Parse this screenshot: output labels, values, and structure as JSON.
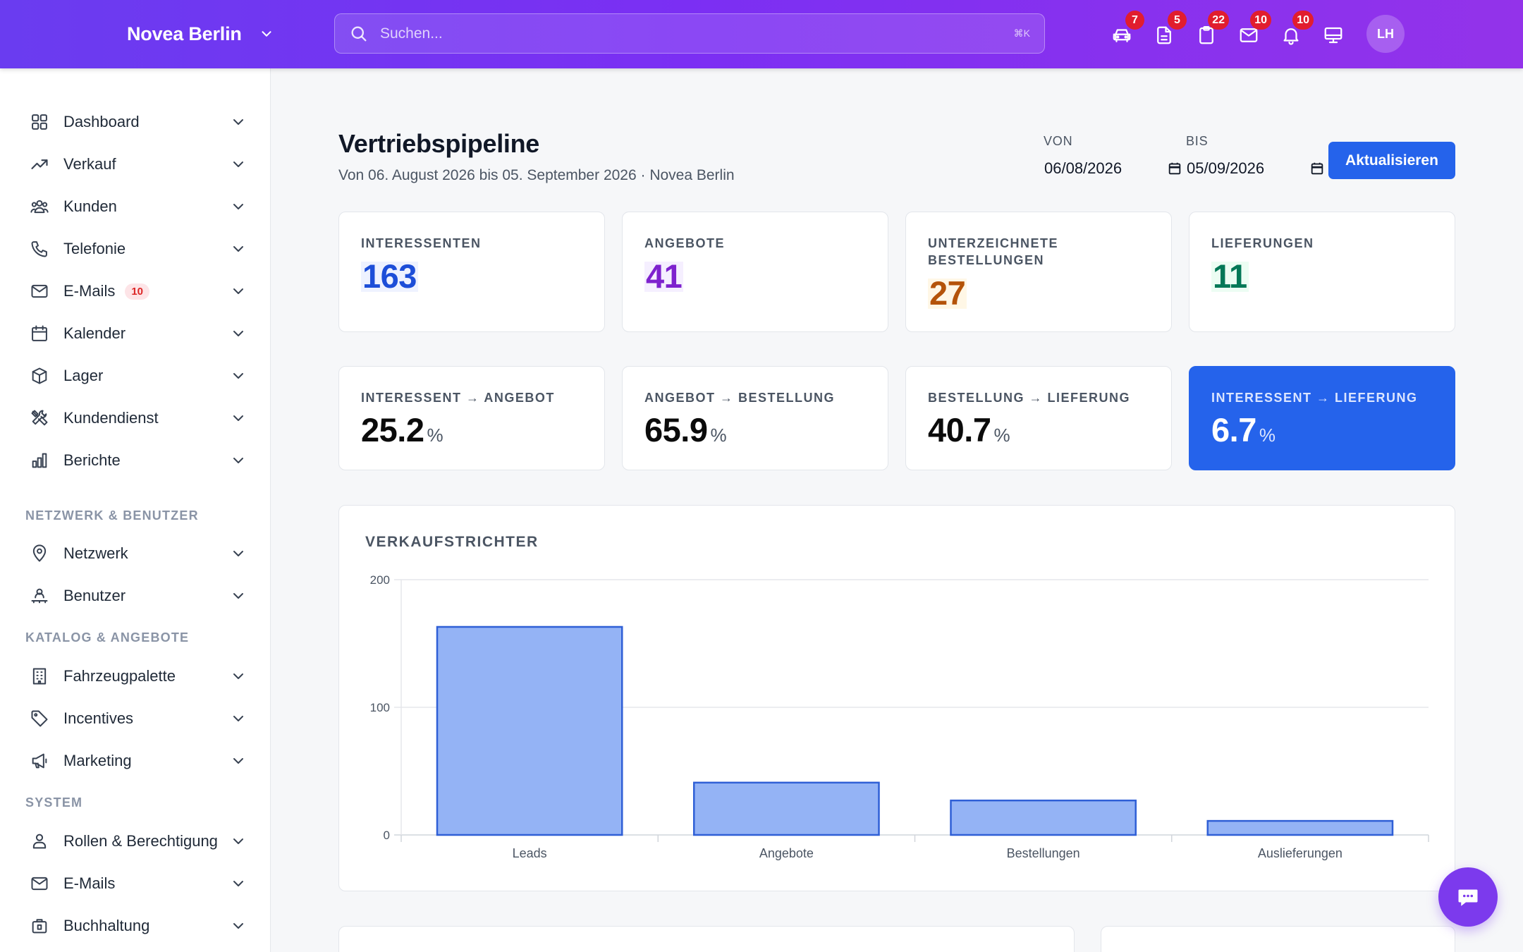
{
  "header": {
    "brand": "Novea Berlin",
    "search_placeholder": "Suchen...",
    "search_shortcut": "⌘K",
    "icons": [
      {
        "name": "car-icon",
        "badge": "7"
      },
      {
        "name": "document-icon",
        "badge": "5"
      },
      {
        "name": "clipboard-icon",
        "badge": "22"
      },
      {
        "name": "mail-icon",
        "badge": "10"
      },
      {
        "name": "bell-icon",
        "badge": "10"
      },
      {
        "name": "monitor-icon",
        "badge": ""
      }
    ],
    "avatar_initials": "LH"
  },
  "sidebar": {
    "main_items": [
      {
        "label": "Dashboard",
        "icon": "grid-icon"
      },
      {
        "label": "Verkauf",
        "icon": "trend-icon"
      },
      {
        "label": "Kunden",
        "icon": "users-icon"
      },
      {
        "label": "Telefonie",
        "icon": "phone-icon"
      },
      {
        "label": "E-Mails",
        "icon": "mail-icon",
        "badge": "10"
      },
      {
        "label": "Kalender",
        "icon": "calendar-icon"
      },
      {
        "label": "Lager",
        "icon": "box-icon"
      },
      {
        "label": "Kundendienst",
        "icon": "tools-icon"
      },
      {
        "label": "Berichte",
        "icon": "chart-icon"
      }
    ],
    "sections": [
      {
        "title": "NETZWERK & BENUTZER",
        "items": [
          {
            "label": "Netzwerk",
            "icon": "map-pin-icon"
          },
          {
            "label": "Benutzer",
            "icon": "user-network-icon"
          }
        ]
      },
      {
        "title": "KATALOG & ANGEBOTE",
        "items": [
          {
            "label": "Fahrzeugpalette",
            "icon": "building-icon"
          },
          {
            "label": "Incentives",
            "icon": "tag-icon"
          },
          {
            "label": "Marketing",
            "icon": "megaphone-icon"
          }
        ]
      },
      {
        "title": "SYSTEM",
        "items": [
          {
            "label": "Rollen & Berechtigung",
            "icon": "user-icon"
          },
          {
            "label": "E-Mails",
            "icon": "mail-icon"
          },
          {
            "label": "Buchhaltung",
            "icon": "briefcase-icon"
          }
        ]
      }
    ]
  },
  "page": {
    "title": "Vertriebspipeline",
    "subtitle": "Von 06. August 2026 bis 05. September 2026 · Novea Berlin",
    "from_label": "VON",
    "from_value": "06/08/2026",
    "to_label": "BIS",
    "to_value": "05/09/2026",
    "update_button": "Aktualisieren"
  },
  "kpis": [
    {
      "label": "INTERESSENTEN",
      "value": "163",
      "color": "#1d4ed8",
      "highlight_bg": "#eef2ff"
    },
    {
      "label": "ANGEBOTE",
      "value": "41",
      "color": "#7e22ce",
      "highlight_bg": "#f5efff"
    },
    {
      "label": "UNTERZEICHNETE BESTELLUNGEN",
      "value": "27",
      "color": "#b45309",
      "highlight_bg": "#fff7e6"
    },
    {
      "label": "LIEFERUNGEN",
      "value": "11",
      "color": "#047857",
      "highlight_bg": "#ecfdf3"
    }
  ],
  "conversions": [
    {
      "label": "INTERESSENT → ANGEBOT",
      "value": "25.2",
      "unit": "%"
    },
    {
      "label": "ANGEBOT → BESTELLUNG",
      "value": "65.9",
      "unit": "%"
    },
    {
      "label": "BESTELLUNG → LIEFERUNG",
      "value": "40.7",
      "unit": "%"
    },
    {
      "label": "INTERESSENT → LIEFERUNG",
      "value": "6.7",
      "unit": "%",
      "highlight": true
    }
  ],
  "chart_data": {
    "type": "bar",
    "title": "VERKAUFSTRICHTER",
    "categories": [
      "Leads",
      "Angebote",
      "Bestellungen",
      "Auslieferungen"
    ],
    "values": [
      163,
      41,
      27,
      11
    ],
    "ylim": [
      0,
      200
    ],
    "yticks": [
      0,
      100,
      200
    ],
    "grid": true,
    "bar_fill": "#94b3f5",
    "bar_stroke": "#2f5fd6"
  }
}
